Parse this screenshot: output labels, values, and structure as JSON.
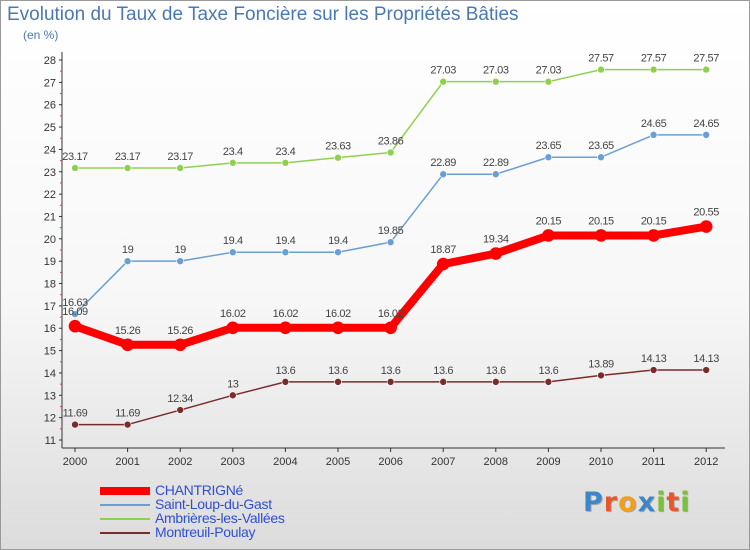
{
  "chart_data": {
    "type": "line",
    "title": "Evolution du Taux de Taxe Foncière sur les Propriétés Bâties",
    "subtitle": "(en %)",
    "x": [
      "2000",
      "2001",
      "2002",
      "2003",
      "2004",
      "2005",
      "2006",
      "2007",
      "2008",
      "2009",
      "2010",
      "2011",
      "2012"
    ],
    "ylim": [
      11,
      28
    ],
    "yticks": [
      11,
      12,
      13,
      14,
      15,
      16,
      17,
      18,
      19,
      20,
      21,
      22,
      23,
      24,
      25,
      26,
      27,
      28
    ],
    "grid": false,
    "legend_position": "bottom-left",
    "series": [
      {
        "name": "CHANTRIGNé",
        "color": "#ff0000",
        "values": [
          16.09,
          15.26,
          15.26,
          16.02,
          16.02,
          16.02,
          16.02,
          18.87,
          19.34,
          20.15,
          20.15,
          20.15,
          20.55
        ],
        "labels": [
          "16.09",
          "15.26",
          "15.26",
          "16.02",
          "16.02",
          "16.02",
          "16.02",
          "18.87",
          "19.34",
          "20.15",
          "20.15",
          "20.15",
          "20.55"
        ]
      },
      {
        "name": "Saint-Loup-du-Gast",
        "color": "#6a9fd4",
        "values": [
          16.63,
          19,
          19,
          19.4,
          19.4,
          19.4,
          19.85,
          22.89,
          22.89,
          23.65,
          23.65,
          24.65,
          24.65
        ],
        "labels": [
          "16.63",
          "19",
          "19",
          "19.4",
          "19.4",
          "19.4",
          "19.85",
          "22.89",
          "22.89",
          "23.65",
          "23.65",
          "24.65",
          "24.65"
        ]
      },
      {
        "name": "Ambrières-les-Vallées",
        "color": "#8fd14f",
        "values": [
          23.17,
          23.17,
          23.17,
          23.4,
          23.4,
          23.63,
          23.86,
          27.03,
          27.03,
          27.03,
          27.57,
          27.57,
          27.57
        ],
        "labels": [
          "23.17",
          "23.17",
          "23.17",
          "23.4",
          "23.4",
          "23.63",
          "23.86",
          "27.03",
          "27.03",
          "27.03",
          "27.57",
          "27.57",
          "27.57"
        ]
      },
      {
        "name": "Montreuil-Poulay",
        "color": "#7a2b2b",
        "values": [
          11.69,
          11.69,
          12.34,
          13,
          13.6,
          13.6,
          13.6,
          13.6,
          13.6,
          13.6,
          13.89,
          14.13,
          14.13
        ],
        "labels": [
          "11.69",
          "11.69",
          "12.34",
          "13",
          "13.6",
          "13.6",
          "13.6",
          "13.6",
          "13.6",
          "13.6",
          "13.89",
          "14.13",
          "14.13"
        ]
      }
    ]
  },
  "logo": {
    "letters": [
      "P",
      "r",
      "o",
      "x",
      "i",
      "t",
      "i"
    ],
    "colors": [
      "#3f86c6",
      "#e9552d",
      "#f0a020",
      "#3f86c6",
      "#7cbf3a",
      "#e9552d",
      "#7cbf3a"
    ]
  }
}
